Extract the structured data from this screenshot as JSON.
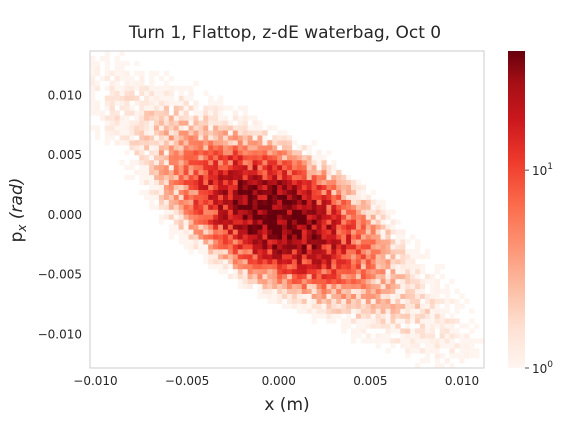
{
  "chart_data": {
    "type": "heatmap",
    "title": "Turn 1, Flattop, z-dE waterbag, Oct 0",
    "xlabel": "x (m)",
    "ylabel_main": "p",
    "ylabel_sub": "x",
    "ylabel_unit": "(rad)",
    "xlim": [
      -0.0103,
      0.0112
    ],
    "ylim": [
      -0.0128,
      0.0137
    ],
    "x_ticks": [
      -0.01,
      -0.005,
      0.0,
      0.005,
      0.01
    ],
    "x_tick_labels": [
      "−0.010",
      "−0.005",
      "0.000",
      "0.005",
      "0.010"
    ],
    "y_ticks": [
      0.01,
      0.005,
      0.0,
      -0.005,
      -0.01
    ],
    "y_tick_labels": [
      "0.010",
      "0.005",
      "0.000",
      "−0.005",
      "−0.010"
    ],
    "grid": false,
    "colormap": "Reds",
    "color_scale": "log",
    "colorbar": {
      "range": [
        1,
        40
      ],
      "ticks": [
        1,
        10
      ],
      "tick_base": "10",
      "tick_exponents": [
        "0",
        "1"
      ]
    },
    "density_model": {
      "core": {
        "center": [
          -0.0002,
          -0.0001
        ],
        "sigma_x": 0.0023,
        "sigma_y": 0.0026,
        "corr": -0.45,
        "peak": 40
      },
      "outer_halo": {
        "center": [
          0.0,
          0.0
        ],
        "sigma_x": 0.0062,
        "sigma_y": 0.0072,
        "corr": -0.88,
        "peak": 3
      }
    }
  },
  "colors": {
    "background": "#ffffff",
    "frame": "#cccccc",
    "bin_min": "#fff5f0",
    "bin_max": "#67000d"
  }
}
